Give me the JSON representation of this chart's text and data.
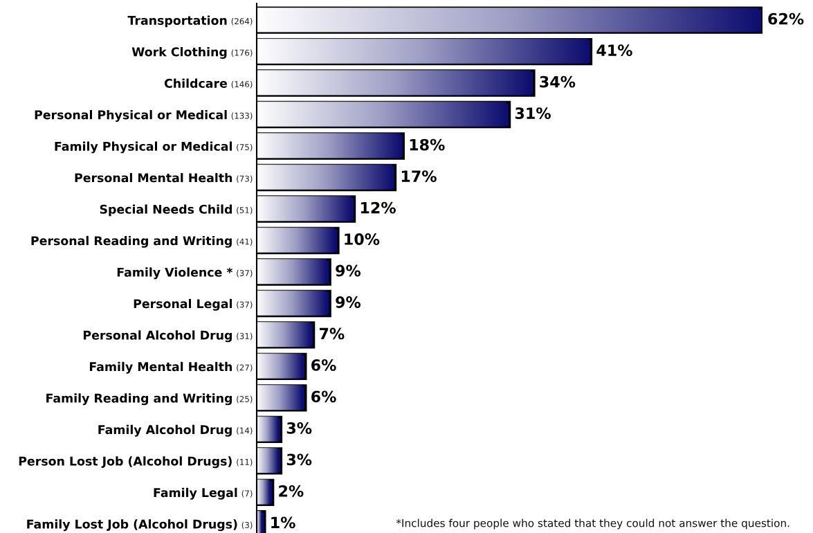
{
  "chart_data": {
    "type": "bar",
    "orientation": "horizontal",
    "categories": [
      "Transportation (264)",
      "Work Clothing (176)",
      "Childcare (146)",
      "Personal Physical or Medical (133)",
      "Family Physical or Medical (75)",
      "Personal Mental Health (73)",
      "Special Needs Child (51)",
      "Personal Reading and Writing (41)",
      "Family Violence * (37)",
      "Personal Legal (37)",
      "Personal Alcohol Drug (31)",
      "Family Mental Health (27)",
      "Family Reading and Writing (25)",
      "Family Alcohol Drug (14)",
      "Person Lost Job (Alcohol Drugs) (11)",
      "Family Legal (7)",
      "Family Lost Job (Alcohol Drugs) (3)"
    ],
    "values": [
      62,
      41,
      34,
      31,
      18,
      17,
      12,
      10,
      9,
      9,
      7,
      6,
      6,
      3,
      3,
      2,
      1
    ],
    "color": "#0f0f70",
    "xlim": [
      0,
      62
    ],
    "value_labels": [
      "62%",
      "41%",
      "34%",
      "31%",
      "18%",
      "17%",
      "12%",
      "10%",
      "9%",
      "9%",
      "7%",
      "6%",
      "6%",
      "3%",
      "3%",
      "2%",
      "1%"
    ],
    "annotations": [
      "*Includes four people who stated that they could not answer the question."
    ]
  }
}
